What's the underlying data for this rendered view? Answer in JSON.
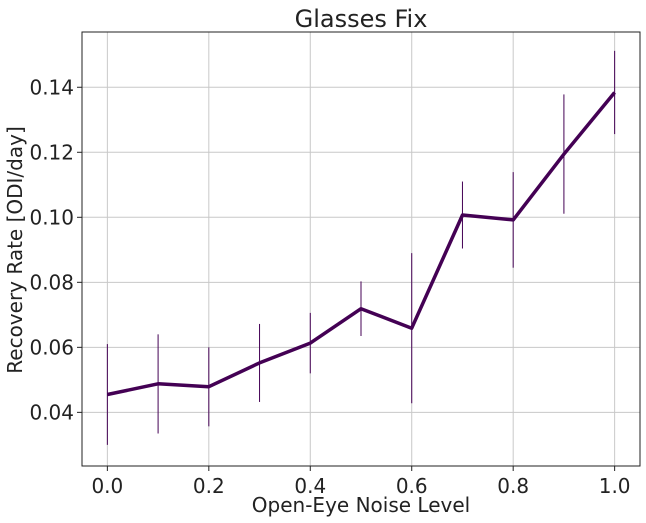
{
  "chart_data": {
    "type": "line",
    "title": "Glasses Fix",
    "xlabel": "Open-Eye Noise Level",
    "ylabel": "Recovery Rate [ODI/day]",
    "xlim": [
      -0.05,
      1.05
    ],
    "ylim": [
      0.0235,
      0.157
    ],
    "xticks": [
      0.0,
      0.2,
      0.4,
      0.6,
      0.8,
      1.0
    ],
    "xtick_labels": [
      "0.0",
      "0.2",
      "0.4",
      "0.6",
      "0.8",
      "1.0"
    ],
    "yticks": [
      0.04,
      0.06,
      0.08,
      0.1,
      0.12,
      0.14
    ],
    "ytick_labels": [
      "0.04",
      "0.06",
      "0.08",
      "0.10",
      "0.12",
      "0.14"
    ],
    "grid": true,
    "color": "#440154",
    "series": [
      {
        "x": [
          0.0,
          0.1,
          0.2,
          0.3,
          0.4,
          0.5,
          0.6,
          0.7,
          0.8,
          0.9,
          1.0
        ],
        "values": [
          0.0455,
          0.0488,
          0.0479,
          0.0552,
          0.0613,
          0.0719,
          0.0659,
          0.1007,
          0.0992,
          0.1194,
          0.1384
        ],
        "err_low": [
          0.03,
          0.0335,
          0.0357,
          0.0432,
          0.052,
          0.0635,
          0.0428,
          0.0904,
          0.0845,
          0.1011,
          0.1256
        ],
        "err_high": [
          0.061,
          0.064,
          0.06,
          0.0672,
          0.0706,
          0.0803,
          0.089,
          0.111,
          0.1139,
          0.1378,
          0.1512
        ]
      }
    ]
  }
}
